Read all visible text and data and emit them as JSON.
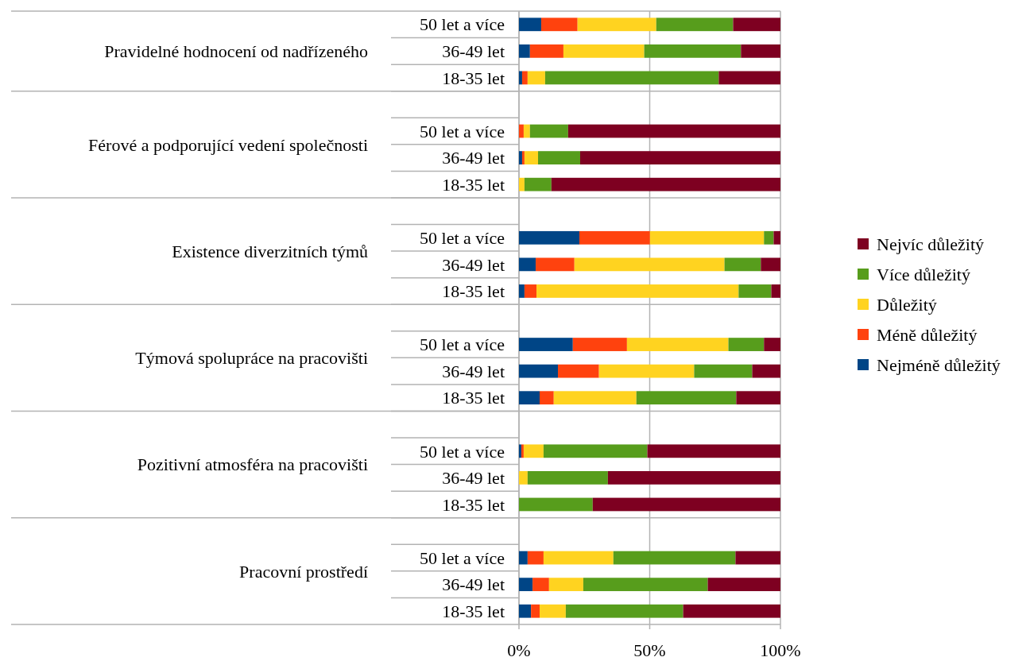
{
  "chart_data": {
    "type": "bar",
    "orientation": "horizontal",
    "stacked": true,
    "categories": [
      "50 let a více",
      "36-49 let",
      "18-35 let",
      null,
      "50 let a více",
      "36-49 let",
      "18-35 let",
      null,
      "50 let a více",
      "36-49 let",
      "18-35 let",
      null,
      "50 let a více",
      "36-49 let",
      "18-35 let",
      null,
      "50 let a více",
      "36-49 let",
      "18-35 let",
      null,
      "50 let a více",
      "36-49 let",
      "18-35 let"
    ],
    "annotations": [
      "Pravidelné hodnocení od nadřízeného",
      "Férové a podporující vedení společnosti",
      "Existence diverzitních týmů",
      "Týmová spolupráce na pracovišti",
      "Pozitivní atmosféra na pracovišti",
      "Pracovní prostředí"
    ],
    "series": [
      {
        "name": "Nejméně důležitý",
        "color": "#004586",
        "values": [
          8.5,
          4.2,
          1.2,
          null,
          0,
          1.2,
          0,
          null,
          23.1,
          6.4,
          2.1,
          null,
          20.6,
          14.9,
          7.9,
          null,
          0.9,
          0,
          0,
          null,
          3.3,
          5.2,
          4.6
        ]
      },
      {
        "name": "Méně důležitý",
        "color": "#ff420e",
        "values": [
          13.9,
          12.8,
          2.1,
          null,
          1.8,
          0.9,
          0,
          null,
          27.0,
          14.8,
          4.6,
          null,
          20.7,
          15.7,
          5.4,
          null,
          0.9,
          0,
          0,
          null,
          6.1,
          6.3,
          3.3
        ]
      },
      {
        "name": "Důležitý",
        "color": "#ffd320",
        "values": [
          30.1,
          30.9,
          6.7,
          null,
          2.4,
          5.2,
          2.1,
          null,
          43.6,
          57.4,
          77.3,
          null,
          38.8,
          36.4,
          31.6,
          null,
          7.6,
          3.3,
          0,
          null,
          26.7,
          13.1,
          10.0
        ]
      },
      {
        "name": "Více důležitý",
        "color": "#579d1c",
        "values": [
          29.4,
          37.0,
          66.4,
          null,
          14.6,
          16.1,
          10.3,
          null,
          3.7,
          13.9,
          12.5,
          null,
          13.6,
          22.2,
          38.2,
          null,
          39.7,
          30.7,
          28.2,
          null,
          46.7,
          47.6,
          44.9
        ]
      },
      {
        "name": "Nejvíc důležitý",
        "color": "#7e0021",
        "values": [
          18.1,
          15.1,
          23.6,
          null,
          81.2,
          76.6,
          87.6,
          null,
          2.6,
          7.5,
          3.5,
          null,
          6.3,
          10.8,
          16.9,
          null,
          50.9,
          66.0,
          71.8,
          null,
          17.2,
          27.8,
          37.2
        ]
      }
    ],
    "xlim": [
      0,
      100
    ],
    "xticks": [
      {
        "value": 0,
        "label": "0%"
      },
      {
        "value": 50,
        "label": "50%"
      },
      {
        "value": 100,
        "label": "100%"
      }
    ],
    "grid": "x",
    "legend": "right"
  }
}
